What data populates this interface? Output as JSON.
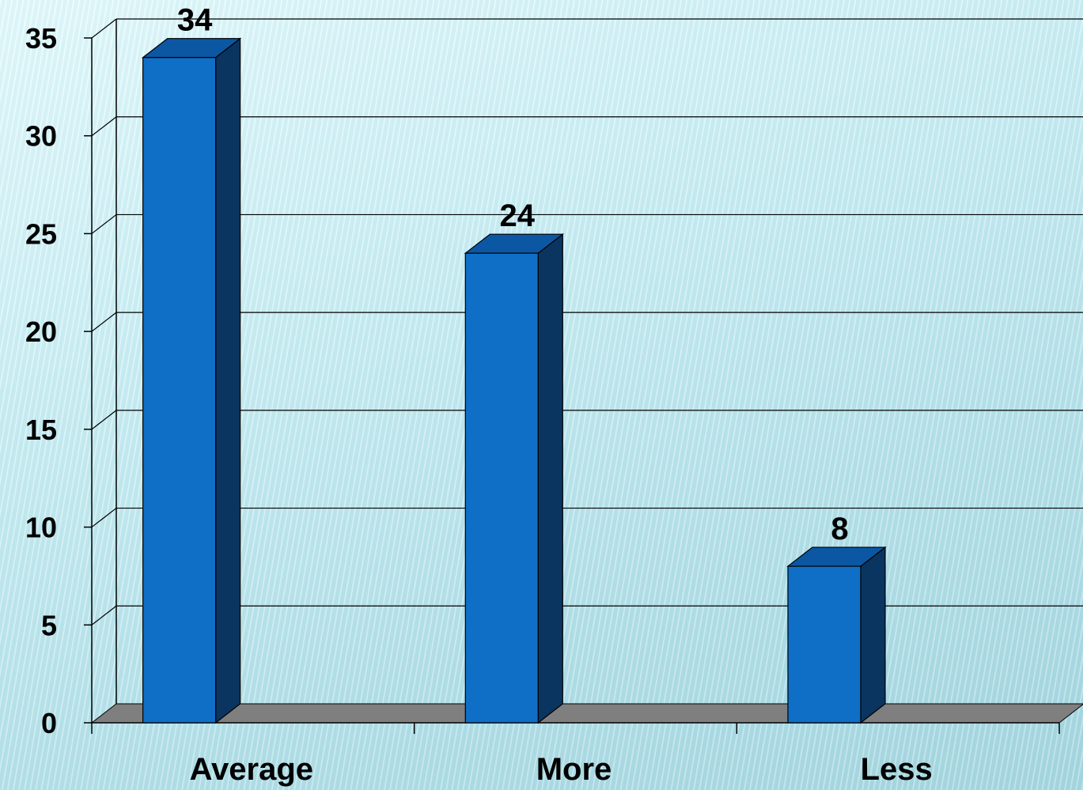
{
  "chart_data": {
    "type": "bar",
    "categories": [
      "Average",
      "More",
      "Less"
    ],
    "values": [
      34,
      24,
      8
    ],
    "data_labels": [
      "34",
      "24",
      "8"
    ],
    "title": "",
    "xlabel": "",
    "ylabel": "",
    "ylim": [
      0,
      35
    ],
    "yticks": [
      "0",
      "5",
      "10",
      "15",
      "20",
      "25",
      "30",
      "35"
    ],
    "grid": true,
    "legend": "none",
    "three_d": true,
    "colors": {
      "bar_front": "#0f6fc6",
      "bar_side": "#0a3560",
      "bar_top": "#0b57a3",
      "floor": "#7f7f7f",
      "gridline": "#000000"
    }
  }
}
